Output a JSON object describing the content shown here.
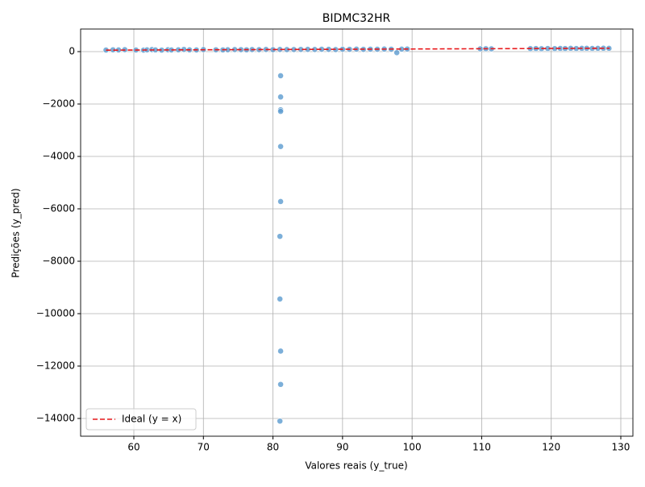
{
  "chart_data": {
    "type": "scatter",
    "title": "BIDMC32HR",
    "x_label": "Valores reais (y_true)",
    "y_label": "Predições (y_pred)",
    "xlim": [
      52.35,
      131.74
    ],
    "ylim": [
      -14677,
      862
    ],
    "xticks": [
      60,
      70,
      80,
      90,
      100,
      110,
      120,
      130
    ],
    "yticks": [
      {
        "value": -14000,
        "label": "−14000"
      },
      {
        "value": -12000,
        "label": "−12000"
      },
      {
        "value": -10000,
        "label": "−10000"
      },
      {
        "value": -8000,
        "label": "−8000"
      },
      {
        "value": -6000,
        "label": "−6000"
      },
      {
        "value": -4000,
        "label": "−4000"
      },
      {
        "value": -2000,
        "label": "−2000"
      },
      0
    ],
    "grid": true,
    "legend": "lower left",
    "series": [
      {
        "type": "scatter",
        "color": "#5b9bd0",
        "x": [
          56,
          57,
          57.8,
          58.7,
          60.3,
          61.4,
          61.9,
          62.6,
          63.1,
          64,
          64.9,
          65.4,
          66.4,
          67.2,
          68,
          69,
          70,
          71.8,
          72.8,
          73.5,
          74.5,
          75.4,
          76.2,
          77,
          78,
          79,
          80,
          81,
          82,
          83,
          84,
          85,
          86,
          87,
          88,
          89,
          90,
          91,
          92,
          93,
          94,
          95,
          96,
          97,
          97.8,
          98.5,
          99.3,
          109.8,
          110.6,
          111.4,
          117,
          117.8,
          118.6,
          119.5,
          120.5,
          121.3,
          122,
          122.8,
          123.6,
          124.4,
          125.1,
          125.9,
          126.7,
          127.5,
          128.3,
          81.1,
          81.1,
          81.1,
          81.1,
          81.1,
          81.1,
          81.0,
          81.0,
          81.1,
          81.1,
          81.0
        ],
        "values": [
          60,
          70,
          65,
          75,
          62,
          55,
          68,
          80,
          66,
          58,
          72,
          64,
          70,
          85,
          68,
          63,
          78,
          70,
          66,
          72,
          80,
          76,
          70,
          79,
          75,
          82,
          74,
          83,
          78,
          81,
          85,
          88,
          84,
          90,
          86,
          80,
          92,
          89,
          95,
          86,
          93,
          91,
          97,
          90,
          -40,
          95,
          99,
          108,
          112,
          105,
          115,
          118,
          112,
          120,
          116,
          122,
          118,
          125,
          120,
          124,
          127,
          122,
          126,
          128,
          125,
          -920,
          -1730,
          -2220,
          -2280,
          -3620,
          -5720,
          -7050,
          -9440,
          -11430,
          -12700,
          -14100
        ]
      },
      {
        "type": "line",
        "name": "Ideal (y = x)",
        "color": "#e8191c",
        "x": [
          56,
          128.4
        ],
        "values": [
          56,
          128.4
        ]
      }
    ]
  }
}
